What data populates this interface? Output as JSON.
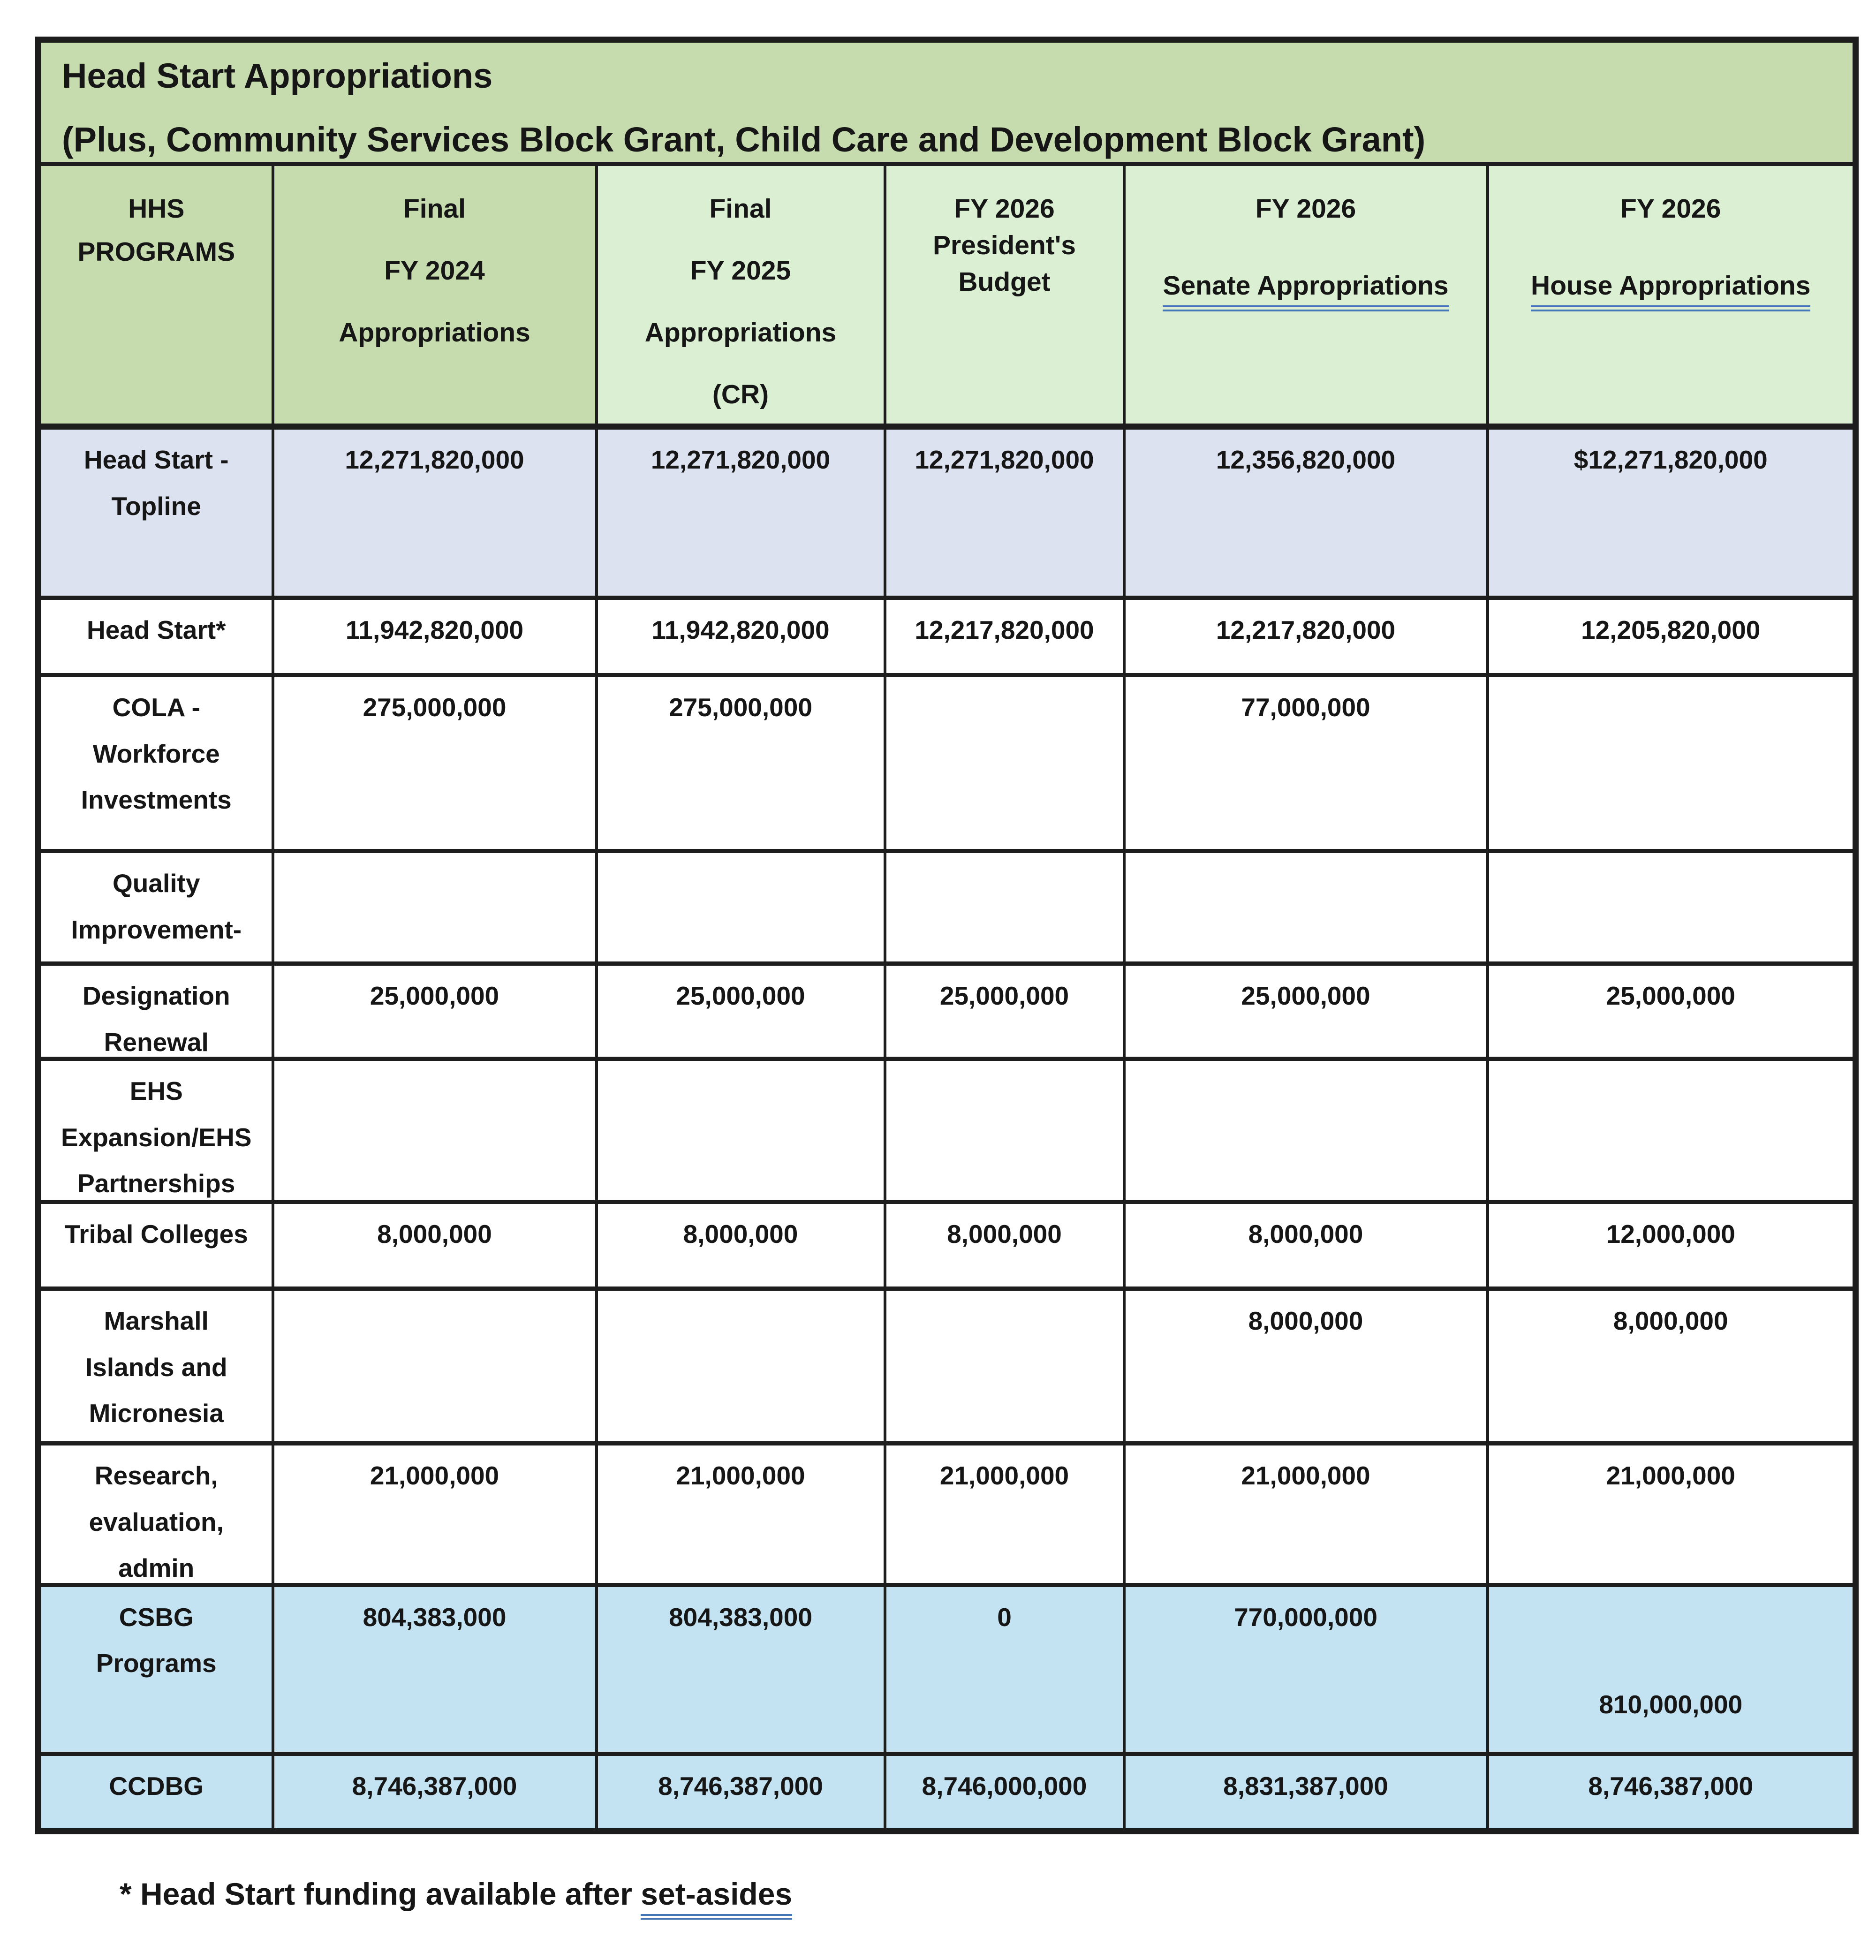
{
  "title": {
    "line1": "Head Start Appropriations",
    "line2": "(Plus, Community Services Block Grant, Child Care and Development Block Grant)"
  },
  "header": {
    "columns": [
      {
        "id": "programs",
        "lines": [
          "HHS",
          "PROGRAMS"
        ]
      },
      {
        "id": "fy2024",
        "lines": [
          "Final",
          "FY 2024",
          "Appropriations"
        ]
      },
      {
        "id": "fy2025",
        "lines": [
          "Final",
          "FY 2025",
          "Appropriations",
          "(CR)"
        ]
      },
      {
        "id": "pres2026",
        "lines": [
          "FY 2026",
          "President's",
          "Budget"
        ]
      },
      {
        "id": "senate2026",
        "lines": [
          "FY 2026"
        ],
        "underlined": "Senate Appropriations"
      },
      {
        "id": "house2026",
        "lines": [
          "FY 2026"
        ],
        "underlined": "House Appropriations"
      }
    ]
  },
  "rows": [
    {
      "program_lines": [
        "Head Start -",
        "Topline"
      ],
      "values": [
        "12,271,820,000",
        "12,271,820,000",
        "12,271,820,000",
        "12,356,820,000",
        "$12,271,820,000"
      ],
      "bg": "row_lavender"
    },
    {
      "program_lines": [
        "Head Start*"
      ],
      "values": [
        "11,942,820,000",
        "11,942,820,000",
        "12,217,820,000",
        "12,217,820,000",
        "12,205,820,000"
      ],
      "bg": "row_white"
    },
    {
      "program_lines": [
        "COLA -",
        "Workforce",
        "Investments"
      ],
      "values": [
        "275,000,000",
        "275,000,000",
        "",
        "77,000,000",
        ""
      ],
      "bg": "row_white"
    },
    {
      "program_lines": [
        "Quality",
        "Improvement-"
      ],
      "values": [
        "",
        "",
        "",
        "",
        ""
      ],
      "bg": "row_white"
    },
    {
      "program_lines": [
        "Designation",
        "Renewal"
      ],
      "values": [
        "25,000,000",
        "25,000,000",
        "25,000,000",
        "25,000,000",
        "25,000,000"
      ],
      "bg": "row_white"
    },
    {
      "program_lines": [
        "EHS",
        "Expansion/EHS",
        "Partnerships"
      ],
      "values": [
        "",
        "",
        "",
        "",
        ""
      ],
      "bg": "row_white"
    },
    {
      "program_lines": [
        "Tribal Colleges"
      ],
      "values": [
        "8,000,000",
        "8,000,000",
        "8,000,000",
        "8,000,000",
        "12,000,000"
      ],
      "bg": "row_white"
    },
    {
      "program_lines": [
        "Marshall",
        "Islands and",
        "Micronesia"
      ],
      "values": [
        "",
        "",
        "",
        "8,000,000",
        "8,000,000"
      ],
      "bg": "row_white"
    },
    {
      "program_lines": [
        "Research,",
        "evaluation,",
        "admin"
      ],
      "values": [
        "21,000,000",
        "21,000,000",
        "21,000,000",
        "21,000,000",
        "21,000,000"
      ],
      "bg": "row_white"
    },
    {
      "program_lines": [
        "CSBG",
        "Programs"
      ],
      "values": [
        "804,383,000",
        "804,383,000",
        "0",
        "770,000,000",
        "810,000,000"
      ],
      "bg": "row_blue"
    },
    {
      "program_lines": [
        "CCDBG"
      ],
      "values": [
        "8,746,387,000",
        "8,746,387,000",
        "8,746,000,000",
        "8,831,387,000",
        "8,746,387,000"
      ],
      "bg": "row_blue"
    }
  ],
  "footnote": {
    "prefix": "* Head Start funding available after ",
    "underlined": "set-asides"
  },
  "colors": {
    "row_lavender": "#dde2f1",
    "row_blue": "#c3e2f2",
    "row_white": "#ffffff",
    "header_green_dark": "#c6dcae",
    "header_green_light": "#dbf0d2",
    "underline_blue": "#4576b8",
    "border_black": "#1d1d1d",
    "text_black": "#161616"
  }
}
